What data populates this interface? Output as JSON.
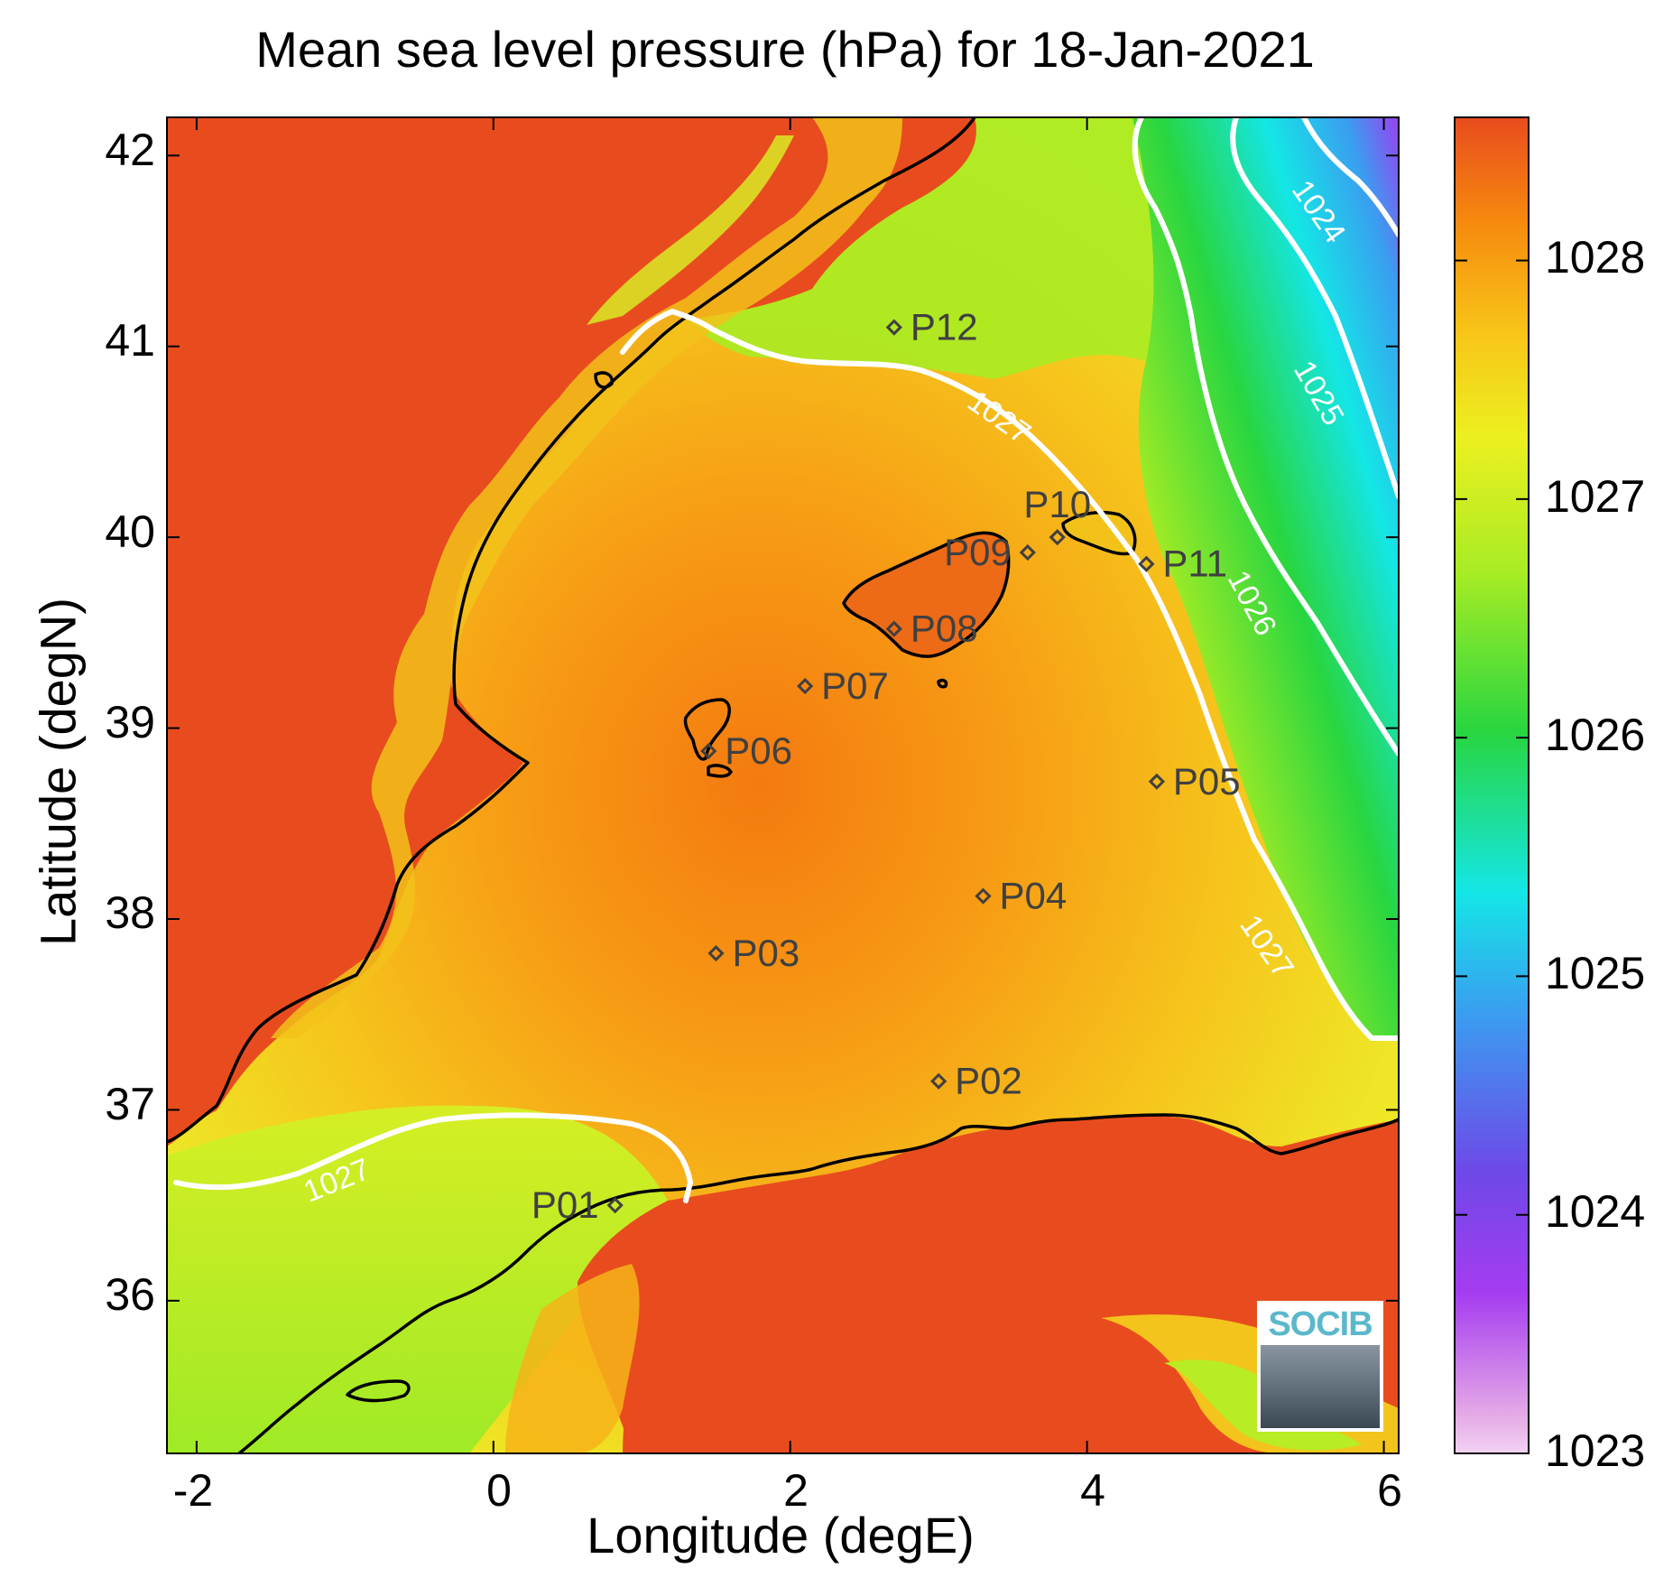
{
  "title": "Mean sea level pressure (hPa) for 18-Jan-2021",
  "axes": {
    "xlabel": "Longitude (degE)",
    "ylabel": "Latitude (degN)",
    "xlim": [
      -2.2,
      6.1
    ],
    "ylim": [
      35.2,
      42.2
    ],
    "xticks": [
      "-2",
      "0",
      "2",
      "4",
      "6"
    ],
    "yticks": [
      "42",
      "41",
      "40",
      "39",
      "38",
      "37",
      "36"
    ]
  },
  "colorbar": {
    "range": [
      1023,
      1028.6
    ],
    "ticks": [
      "1028",
      "1027",
      "1026",
      "1025",
      "1024",
      "1023"
    ],
    "colors": [
      "#e4a8e6",
      "#a53cf0",
      "#6e48e8",
      "#3a9ef0",
      "#14e6e6",
      "#28d640",
      "#a8ec24",
      "#ecf020",
      "#f8c418",
      "#f68b0e",
      "#e84c1e"
    ]
  },
  "contour_labels": [
    {
      "text": "1024",
      "lon": 5.55,
      "lat": 41.7,
      "angle": 55
    },
    {
      "text": "1025",
      "lon": 5.55,
      "lat": 40.75,
      "angle": 60
    },
    {
      "text": "1026",
      "lon": 5.1,
      "lat": 39.65,
      "angle": 62
    },
    {
      "text": "1027",
      "lon": 3.4,
      "lat": 40.62,
      "angle": 35
    },
    {
      "text": "1027",
      "lon": 5.2,
      "lat": 37.85,
      "angle": 55
    },
    {
      "text": "1027",
      "lon": -1.05,
      "lat": 36.62,
      "angle": -22
    }
  ],
  "stations": [
    {
      "name": "P01",
      "lon": 0.82,
      "lat": 36.5,
      "label_side": "left"
    },
    {
      "name": "P02",
      "lon": 3.0,
      "lat": 37.15,
      "label_side": "right"
    },
    {
      "name": "P03",
      "lon": 1.5,
      "lat": 37.82,
      "label_side": "right"
    },
    {
      "name": "P04",
      "lon": 3.3,
      "lat": 38.12,
      "label_side": "right"
    },
    {
      "name": "P05",
      "lon": 4.47,
      "lat": 38.72,
      "label_side": "right"
    },
    {
      "name": "P06",
      "lon": 1.45,
      "lat": 38.88,
      "label_side": "right"
    },
    {
      "name": "P07",
      "lon": 2.1,
      "lat": 39.22,
      "label_side": "right"
    },
    {
      "name": "P08",
      "lon": 2.7,
      "lat": 39.52,
      "label_side": "right"
    },
    {
      "name": "P09",
      "lon": 3.6,
      "lat": 39.92,
      "label_side": "left"
    },
    {
      "name": "P10",
      "lon": 3.8,
      "lat": 40.0,
      "label_side": "above"
    },
    {
      "name": "P11",
      "lon": 4.4,
      "lat": 39.86,
      "label_side": "right"
    },
    {
      "name": "P12",
      "lon": 2.7,
      "lat": 41.1,
      "label_side": "right"
    }
  ],
  "logo": {
    "text": "SOCIB"
  }
}
